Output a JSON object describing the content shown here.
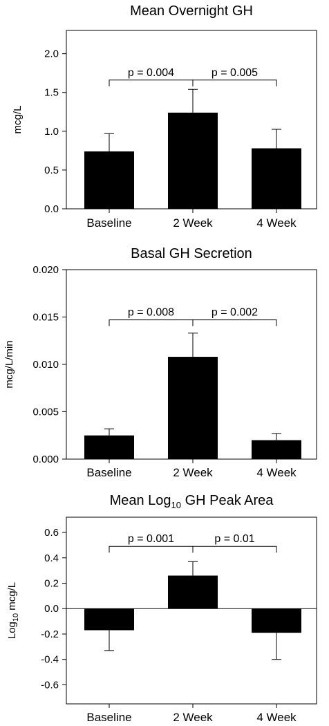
{
  "chart_data": [
    {
      "type": "bar",
      "title": "Mean Overnight GH",
      "ylabel": "mcg/L",
      "categories": [
        "Baseline",
        "2 Week",
        "4 Week"
      ],
      "values": [
        0.74,
        1.24,
        0.78
      ],
      "errors": [
        0.23,
        0.3,
        0.245
      ],
      "error_direction": "up",
      "ylim": [
        0.0,
        2.3
      ],
      "yticks": [
        "0.0",
        "0.5",
        "1.0",
        "1.5",
        "2.0"
      ],
      "ytick_values": [
        0.0,
        0.5,
        1.0,
        1.5,
        2.0
      ],
      "annotations": [
        {
          "from": 0,
          "to": 1,
          "text": "p = 0.004",
          "y": 1.66
        },
        {
          "from": 1,
          "to": 2,
          "text": "p = 0.005",
          "y": 1.66
        }
      ],
      "zero_line": false,
      "grid": false
    },
    {
      "type": "bar",
      "title": "Basal GH Secretion",
      "ylabel": "mcg/L/min",
      "categories": [
        "Baseline",
        "2 Week",
        "4 Week"
      ],
      "values": [
        0.0025,
        0.0108,
        0.002
      ],
      "errors": [
        0.0007,
        0.0025,
        0.0007
      ],
      "error_direction": "up",
      "ylim": [
        0.0,
        0.02
      ],
      "yticks": [
        "0.000",
        "0.005",
        "0.010",
        "0.015",
        "0.020"
      ],
      "ytick_values": [
        0.0,
        0.005,
        0.01,
        0.015,
        0.02
      ],
      "annotations": [
        {
          "from": 0,
          "to": 1,
          "text": "p = 0.008",
          "y": 0.0147
        },
        {
          "from": 1,
          "to": 2,
          "text": "p = 0.002",
          "y": 0.0147
        }
      ],
      "zero_line": false,
      "grid": false
    },
    {
      "type": "bar",
      "title": "Mean Log",
      "title_sub": "10",
      "title_rest": " GH Peak Area",
      "ylabel": "Log",
      "ylabel_sub": "10",
      "ylabel_rest": " mcg/L",
      "categories": [
        "Baseline",
        "2 Week",
        "4 Week"
      ],
      "values": [
        -0.17,
        0.26,
        -0.19
      ],
      "errors": [
        0.16,
        0.11,
        0.21
      ],
      "error_direction": "outward",
      "ylim": [
        -0.75,
        0.72
      ],
      "yticks": [
        "-0.6",
        "-0.4",
        "-0.2",
        "0.0",
        "0.2",
        "0.4",
        "0.6"
      ],
      "ytick_values": [
        -0.6,
        -0.4,
        -0.2,
        0.0,
        0.2,
        0.4,
        0.6
      ],
      "annotations": [
        {
          "from": 0,
          "to": 1,
          "text": "p = 0.001",
          "y": 0.49
        },
        {
          "from": 1,
          "to": 2,
          "text": "p = 0.01",
          "y": 0.49
        }
      ],
      "zero_line": true,
      "grid": false
    }
  ]
}
